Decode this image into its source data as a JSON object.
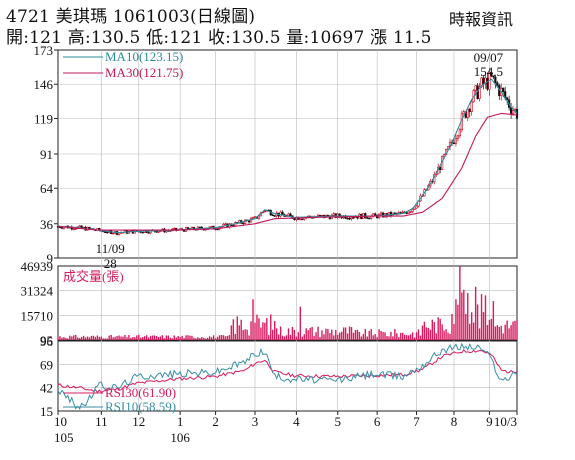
{
  "header": {
    "title": "4721 美琪瑪 1061003(日線圖)",
    "quote": "開:121 高:130.5 低:121 收:130.5 量:10697 漲 11.5",
    "source": "時報資訊"
  },
  "colors": {
    "ma10": "#2e8b9a",
    "ma30": "#c2185b",
    "volume": "#d81b60",
    "rsi30": "#d81b60",
    "rsi10": "#3a8fa6",
    "up": "#d0021b",
    "down": "#111111"
  },
  "chart_data": [
    {
      "type": "line",
      "panel": "price",
      "ylim": [
        9,
        173
      ],
      "yticks": [
        "173",
        "146",
        "119",
        "91",
        "64",
        "36",
        "9"
      ],
      "ytick_values": [
        173,
        146,
        119,
        91,
        64,
        36,
        9
      ],
      "legend": [
        "MA10(123.15)",
        "MA30(121.75)"
      ],
      "annotations": [
        {
          "text": "11/09",
          "x": 25,
          "y": 28,
          "label_pos": "below"
        },
        {
          "text": "28",
          "x": 25,
          "y": 28,
          "label_pos": "below"
        },
        {
          "text": "09/07",
          "x": 220,
          "y": 154.5,
          "label_pos": "above"
        },
        {
          "text": "154.5",
          "x": 220,
          "y": 154.5,
          "label_pos": "above"
        }
      ],
      "series": [
        {
          "name": "MA10",
          "x": [
            0,
            10,
            20,
            30,
            40,
            60,
            80,
            90,
            100,
            105,
            110,
            120,
            140,
            160,
            175,
            180,
            185,
            190,
            195,
            200,
            205,
            210,
            215,
            220,
            225,
            230,
            233
          ],
          "values": [
            34,
            33,
            31,
            29,
            30,
            31,
            33,
            36,
            40,
            47,
            44,
            41,
            42,
            42,
            44,
            48,
            58,
            70,
            85,
            100,
            118,
            134,
            145,
            150,
            140,
            128,
            123.15
          ]
        },
        {
          "name": "MA30",
          "x": [
            0,
            20,
            40,
            60,
            80,
            100,
            110,
            130,
            160,
            175,
            185,
            195,
            205,
            212,
            218,
            225,
            233
          ],
          "values": [
            34,
            31,
            31,
            31,
            32,
            36,
            40,
            41,
            42,
            42,
            45,
            56,
            80,
            105,
            120,
            123,
            121.75
          ]
        }
      ]
    },
    {
      "type": "bar",
      "panel": "volume",
      "title": "成交量(張)",
      "yticks": [
        "46939",
        "31324",
        "15710",
        "95"
      ],
      "ytick_values": [
        46939,
        31324,
        15710,
        95
      ],
      "ylim": [
        95,
        46939
      ]
    },
    {
      "type": "line",
      "panel": "rsi",
      "ylim": [
        15,
        96
      ],
      "yticks": [
        "96",
        "69",
        "42",
        "15"
      ],
      "ytick_values": [
        96,
        69,
        42,
        15
      ],
      "legend": [
        "RSI30(61.90)",
        "RSI10(58.59)"
      ],
      "series": [
        {
          "name": "RSI30",
          "x": [
            0,
            10,
            20,
            30,
            40,
            60,
            80,
            95,
            100,
            105,
            110,
            120,
            140,
            160,
            175,
            185,
            195,
            205,
            215,
            220,
            225,
            230,
            233
          ],
          "values": [
            45,
            42,
            38,
            40,
            47,
            52,
            55,
            62,
            70,
            74,
            60,
            56,
            55,
            56,
            57,
            63,
            78,
            84,
            85,
            80,
            62,
            60,
            61.9
          ]
        },
        {
          "name": "RSI10",
          "x": [
            0,
            5,
            10,
            15,
            20,
            30,
            40,
            60,
            80,
            95,
            100,
            105,
            110,
            120,
            140,
            160,
            175,
            185,
            195,
            205,
            215,
            220,
            225,
            230,
            233
          ],
          "values": [
            40,
            30,
            20,
            25,
            45,
            42,
            55,
            58,
            60,
            72,
            82,
            84,
            55,
            52,
            50,
            58,
            55,
            68,
            86,
            90,
            88,
            75,
            50,
            55,
            58.59
          ]
        }
      ]
    },
    {
      "type": "axis",
      "panel": "time",
      "xticks": [
        {
          "label": "10",
          "x": 0
        },
        {
          "label": "11",
          "x": 22
        },
        {
          "label": "12",
          "x": 41
        },
        {
          "label": "1",
          "x": 62
        },
        {
          "label": "2",
          "x": 80
        },
        {
          "label": "3",
          "x": 100
        },
        {
          "label": "4",
          "x": 121
        },
        {
          "label": "5",
          "x": 142
        },
        {
          "label": "6",
          "x": 162
        },
        {
          "label": "7",
          "x": 182
        },
        {
          "label": "8",
          "x": 201
        },
        {
          "label": "9",
          "x": 219
        },
        {
          "label": "10/3",
          "x": 233
        }
      ],
      "year_labels": [
        {
          "label": "105",
          "x": 0
        },
        {
          "label": "106",
          "x": 62
        }
      ]
    }
  ]
}
